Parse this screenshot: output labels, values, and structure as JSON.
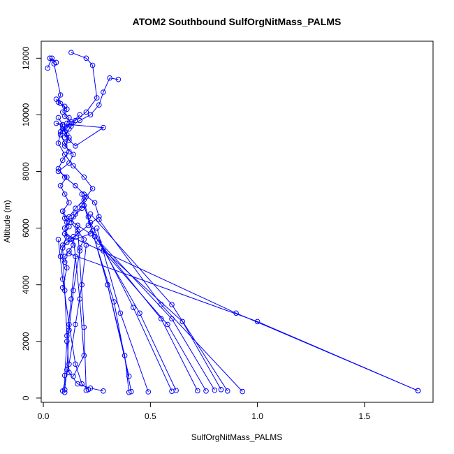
{
  "chart_data": {
    "type": "line",
    "title": "ATOM2 Southbound SulfOrgNitMass_PALMS",
    "xlabel": "SulfOrgNitMass_PALMS",
    "ylabel": "Altitude (m)",
    "xlim": [
      -0.01,
      1.82
    ],
    "ylim": [
      -150,
      12600
    ],
    "xticks": [
      "0.0",
      "0.5",
      "1.0",
      "1.5"
    ],
    "yticks": [
      "0",
      "2000",
      "4000",
      "6000",
      "8000",
      "10000",
      "12000"
    ],
    "xtick_values": [
      0,
      0.5,
      1.0,
      1.5
    ],
    "ytick_values": [
      0,
      2000,
      4000,
      6000,
      8000,
      10000,
      12000
    ],
    "grid": false,
    "colors": {
      "series": "#0000ff",
      "axis": "#000000",
      "background": "#ffffff"
    },
    "series": [
      {
        "x": [
          0.02,
          0.04,
          0.06,
          0.03,
          0.05,
          0.08,
          0.07,
          0.1,
          0.09,
          0.12,
          0.11,
          0.1,
          0.12,
          0.15,
          0.28,
          0.06,
          0.09,
          0.11
        ],
        "y": [
          11650,
          12000,
          11850,
          12000,
          11800,
          10700,
          10450,
          10300,
          10100,
          9900,
          9700,
          9400,
          9100,
          8900,
          9550,
          9700,
          9600,
          9300
        ]
      },
      {
        "x": [
          0.13,
          0.2,
          0.23,
          0.25,
          0.2,
          0.15,
          0.12,
          0.1
        ],
        "y": [
          12200,
          12000,
          11750,
          10600,
          10100,
          9800,
          9500,
          9200
        ]
      },
      {
        "x": [
          0.35,
          0.31,
          0.28,
          0.26,
          0.22,
          0.17,
          0.13
        ],
        "y": [
          11250,
          11300,
          10800,
          10350,
          10000,
          9800,
          9600
        ]
      },
      {
        "x": [
          0.06,
          0.08,
          0.11,
          0.1,
          0.13,
          0.09,
          0.12,
          0.1,
          0.14,
          0.12,
          0.07,
          0.11,
          0.08,
          0.1,
          0.12,
          0.09,
          0.11,
          0.16,
          0.22,
          0.11
        ],
        "y": [
          10550,
          10400,
          10200,
          9950,
          9750,
          9500,
          9200,
          8900,
          8600,
          8300,
          8000,
          7800,
          7500,
          7200,
          6900,
          6600,
          6350,
          6100,
          5800,
          5500
        ]
      },
      {
        "x": [
          0.07,
          0.09,
          0.08,
          0.1,
          0.12,
          0.09,
          0.07,
          0.1,
          0.15,
          0.19,
          0.24,
          0.26,
          0.21,
          0.16,
          0.11,
          0.09,
          0.08,
          0.1
        ],
        "y": [
          9900,
          9650,
          9300,
          9000,
          8700,
          8400,
          8100,
          7800,
          7500,
          7200,
          6900,
          6400,
          6100,
          5800,
          5500,
          5300,
          5000,
          4800
        ]
      },
      {
        "x": [
          0.17,
          0.13,
          0.08,
          0.07,
          0.1,
          0.14,
          0.19,
          0.23,
          0.19,
          0.15,
          0.12,
          0.1
        ],
        "y": [
          10000,
          9700,
          9400,
          9000,
          8600,
          8200,
          7800,
          7400,
          7000,
          6700,
          6400,
          6000
        ]
      },
      {
        "x": [
          0.09,
          0.1,
          0.11,
          0.12,
          0.1,
          0.13,
          0.14,
          0.12,
          0.1,
          0.11,
          0.09
        ],
        "y": [
          6600,
          6350,
          6200,
          6050,
          5800,
          5600,
          5400,
          5200,
          5000,
          4600,
          3900
        ]
      },
      {
        "x": [
          0.09,
          0.1,
          0.11,
          0.12,
          0.16,
          0.22,
          0.28
        ],
        "y": [
          5300,
          3800,
          2200,
          900,
          500,
          350,
          250
        ]
      },
      {
        "x": [
          0.07,
          0.09,
          0.12,
          0.15,
          0.18,
          0.21
        ],
        "y": [
          5600,
          4200,
          2600,
          1200,
          500,
          300
        ]
      },
      {
        "x": [
          0.15,
          0.13,
          0.11,
          0.1,
          0.1
        ],
        "y": [
          5000,
          3500,
          2000,
          800,
          200
        ]
      },
      {
        "x": [
          0.17,
          0.14,
          0.12,
          0.11,
          0.1
        ],
        "y": [
          5200,
          3800,
          2400,
          1000,
          300
        ]
      },
      {
        "x": [
          0.2,
          0.18,
          0.15,
          0.12,
          0.09
        ],
        "y": [
          5400,
          4000,
          2600,
          1200,
          250
        ]
      },
      {
        "x": [
          0.16,
          0.19,
          0.2
        ],
        "y": [
          6100,
          2500,
          270
        ]
      },
      {
        "x": [
          0.14,
          0.17,
          0.19,
          0.14
        ],
        "y": [
          5700,
          3500,
          1500,
          770
        ]
      },
      {
        "x": [
          0.21,
          0.3,
          0.38,
          0.4
        ],
        "y": [
          6400,
          4000,
          1500,
          200
        ]
      },
      {
        "x": [
          0.25,
          0.36,
          0.49
        ],
        "y": [
          6000,
          3000,
          220
        ]
      },
      {
        "x": [
          0.22,
          0.42,
          0.6
        ],
        "y": [
          6200,
          3200,
          240
        ]
      },
      {
        "x": [
          0.23,
          0.45,
          0.62
        ],
        "y": [
          5900,
          3000,
          270
        ]
      },
      {
        "x": [
          0.26,
          0.55,
          0.72
        ],
        "y": [
          5500,
          2800,
          260
        ]
      },
      {
        "x": [
          0.28,
          0.58,
          0.76
        ],
        "y": [
          5200,
          2600,
          250
        ]
      },
      {
        "x": [
          0.24,
          0.6,
          0.8
        ],
        "y": [
          5700,
          2800,
          280
        ]
      },
      {
        "x": [
          0.27,
          0.65,
          0.83
        ],
        "y": [
          5300,
          2700,
          300
        ]
      },
      {
        "x": [
          0.22,
          0.6,
          0.86
        ],
        "y": [
          6500,
          3300,
          250
        ]
      },
      {
        "x": [
          0.26,
          0.55,
          0.93
        ],
        "y": [
          6300,
          3300,
          230
        ]
      },
      {
        "x": [
          0.19,
          0.33,
          0.41
        ],
        "y": [
          6800,
          3400,
          230
        ]
      },
      {
        "x": [
          0.18,
          0.3,
          0.4
        ],
        "y": [
          7200,
          4000,
          770
        ]
      },
      {
        "x": [
          0.1,
          0.9,
          1.75
        ],
        "y": [
          5800,
          3000,
          260
        ]
      },
      {
        "x": [
          0.12,
          1.0,
          1.75
        ],
        "y": [
          5100,
          2700,
          260
        ]
      },
      {
        "x": [
          0.18,
          0.14,
          0.1,
          0.11,
          0.09
        ],
        "y": [
          6700,
          6400,
          6000,
          5700,
          5400
        ]
      },
      {
        "x": [
          0.2,
          0.18,
          0.15,
          0.13,
          0.16,
          0.19,
          0.17
        ],
        "y": [
          7100,
          6800,
          6500,
          6200,
          5900,
          5600,
          5300
        ]
      }
    ]
  }
}
